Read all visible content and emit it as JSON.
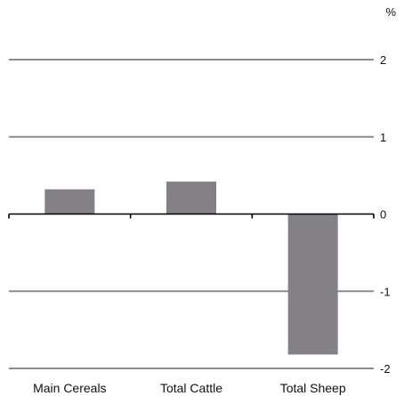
{
  "chart_data": {
    "type": "bar",
    "categories": [
      "Main Cereals",
      "Total Cattle",
      "Total Sheep"
    ],
    "values": [
      0.32,
      0.42,
      -1.82
    ],
    "y_unit": "%",
    "ylim": [
      -2,
      2
    ],
    "yticks": [
      2,
      1,
      0,
      -1,
      -2
    ],
    "ytick_labels": [
      "2",
      "1",
      "0",
      "-1",
      "-2"
    ],
    "y_axis_side": "right",
    "grid": true,
    "legend": "none",
    "colors": {
      "bar": "#838086",
      "grid": "#8c8c8c",
      "axis": "#000000",
      "text": "#111111"
    }
  }
}
